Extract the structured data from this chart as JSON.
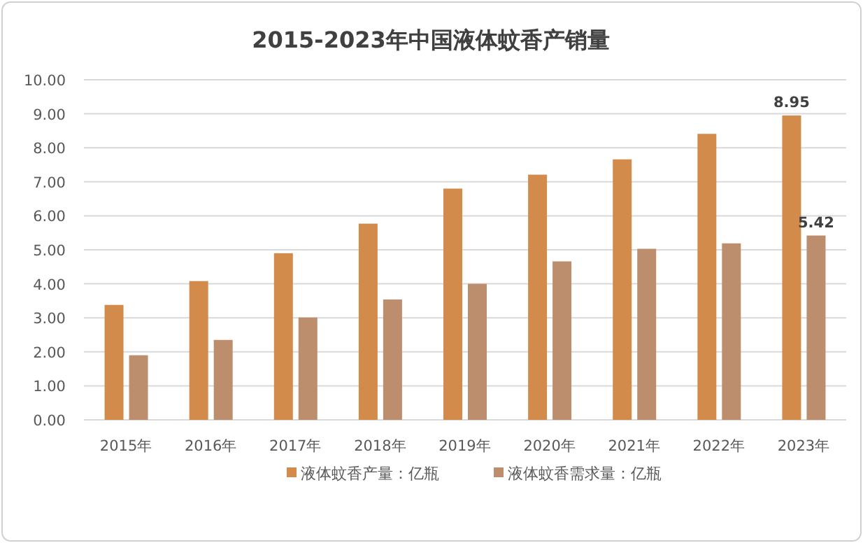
{
  "chart_data": {
    "type": "bar",
    "title": "2015-2023年中国液体蚊香产销量",
    "categories": [
      "2015年",
      "2016年",
      "2017年",
      "2018年",
      "2019年",
      "2020年",
      "2021年",
      "2022年",
      "2023年"
    ],
    "series": [
      {
        "name": "液体蚊香产量：亿瓶",
        "color": "#d38b4c",
        "values": [
          3.38,
          4.08,
          4.9,
          5.77,
          6.8,
          7.21,
          7.66,
          8.41,
          8.95
        ],
        "value_labels": [
          null,
          null,
          null,
          null,
          null,
          null,
          null,
          null,
          "8.95"
        ]
      },
      {
        "name": "液体蚊香需求量：亿瓶",
        "color": "#bc8e6e",
        "values": [
          1.9,
          2.35,
          3.01,
          3.54,
          4.0,
          4.66,
          5.03,
          5.19,
          5.42
        ],
        "value_labels": [
          null,
          null,
          null,
          null,
          null,
          null,
          null,
          null,
          "5.42"
        ]
      }
    ],
    "ylim": [
      0,
      10
    ],
    "yticks": [
      {
        "value": 0,
        "label": "0.00"
      },
      {
        "value": 1,
        "label": "1.00"
      },
      {
        "value": 2,
        "label": "2.00"
      },
      {
        "value": 3,
        "label": "3.00"
      },
      {
        "value": 4,
        "label": "4.00"
      },
      {
        "value": 5,
        "label": "5.00"
      },
      {
        "value": 6,
        "label": "6.00"
      },
      {
        "value": 7,
        "label": "7.00"
      },
      {
        "value": 8,
        "label": "8.00"
      },
      {
        "value": 9,
        "label": "9.00"
      },
      {
        "value": 10,
        "label": "10.00"
      }
    ],
    "grid": "y",
    "legend": "bottom"
  }
}
